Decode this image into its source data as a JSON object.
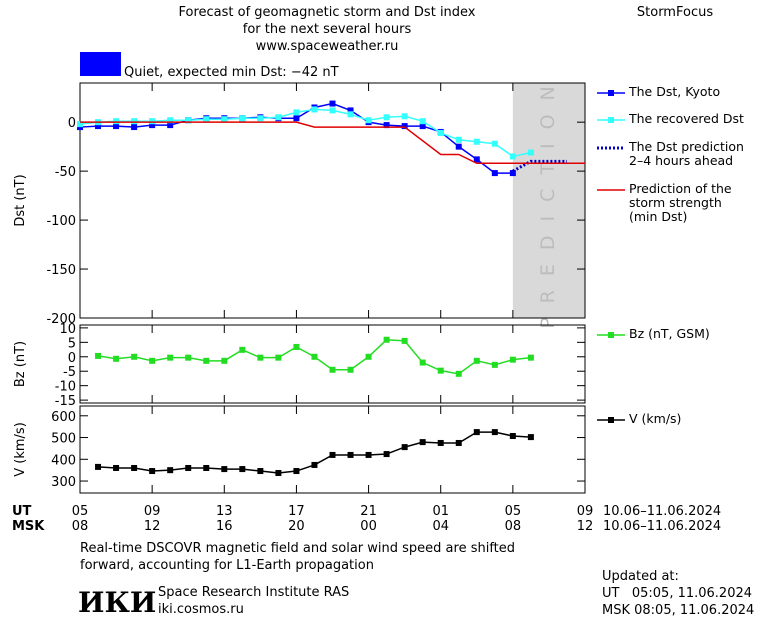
{
  "header": {
    "title_lines": [
      "Forecast of geomagnetic storm and Dst index",
      "for the next several hours",
      "www.spaceweather.ru"
    ],
    "brand": "StormFocus"
  },
  "chart_data": [
    {
      "type": "line",
      "ylabel": "Dst (nT)",
      "xlim": [
        0,
        28
      ],
      "ylim": [
        -200,
        40
      ],
      "yticks": [
        0,
        -50,
        -100,
        -150,
        -200
      ],
      "xticks": [
        0,
        4,
        8,
        12,
        16,
        20,
        24,
        28
      ],
      "annotation": {
        "text": "Quiet, expected min Dst: −42 nT",
        "level_color": "#0000ff"
      },
      "prediction_label": "PREDICTION",
      "prediction_region": [
        24,
        28
      ],
      "series": [
        {
          "name": "The Dst, Kyoto",
          "color": "#0000ff",
          "marker": "square",
          "x": [
            0,
            1,
            2,
            3,
            4,
            5,
            6,
            7,
            8,
            9,
            10,
            11,
            12,
            13,
            14,
            15,
            16,
            17,
            18,
            19,
            20,
            21,
            22,
            23,
            24
          ],
          "values": [
            -5,
            -4,
            -4,
            -5,
            -3,
            -3,
            2,
            4,
            4,
            4,
            5,
            4,
            4,
            15,
            19,
            12,
            0,
            -3,
            -4,
            -4,
            -10,
            -25,
            -38,
            -52,
            -52
          ]
        },
        {
          "name": "The recovered Dst",
          "color": "#33ffff",
          "marker": "square",
          "x": [
            0,
            1,
            2,
            3,
            4,
            5,
            6,
            7,
            8,
            9,
            10,
            11,
            12,
            13,
            14,
            15,
            16,
            17,
            18,
            19,
            20,
            21,
            22,
            23,
            24,
            25
          ],
          "values": [
            -2,
            0,
            1,
            1,
            1,
            2,
            2,
            3,
            3,
            4,
            4,
            5,
            10,
            13,
            12,
            8,
            2,
            5,
            6,
            1,
            -11,
            -18,
            -20,
            -22,
            -35,
            -31
          ]
        },
        {
          "name": "The Dst prediction 2–4 hours ahead",
          "color": "#0000cc",
          "dash": true,
          "x": [
            24,
            25,
            27
          ],
          "values": [
            -50,
            -40,
            -40
          ]
        },
        {
          "name": "Prediction of the storm strength (min Dst)",
          "color": "#e00000",
          "x": [
            0,
            12,
            13,
            18,
            20,
            21,
            22,
            28
          ],
          "values": [
            0,
            0,
            -5,
            -5,
            -33,
            -33,
            -42,
            -42
          ]
        }
      ]
    },
    {
      "type": "line",
      "ylabel": "Bz (nT)",
      "xlim": [
        0,
        28
      ],
      "ylim": [
        -16,
        11
      ],
      "yticks": [
        10,
        5,
        0,
        -5,
        -10,
        -15
      ],
      "xticks": [
        0,
        4,
        8,
        12,
        16,
        20,
        24,
        28
      ],
      "series": [
        {
          "name": "Bz (nT, GSM)",
          "color": "#22dd22",
          "marker": "square",
          "x": [
            1,
            2,
            3,
            4,
            5,
            6,
            7,
            8,
            9,
            10,
            11,
            12,
            13,
            14,
            15,
            16,
            17,
            18,
            19,
            20,
            21,
            22,
            23,
            24,
            25
          ],
          "values": [
            0.3,
            -0.7,
            0,
            -1.4,
            -0.3,
            -0.3,
            -1.4,
            -1.4,
            2.4,
            -0.3,
            -0.3,
            3.4,
            0,
            -4.5,
            -4.5,
            0,
            5.9,
            5.5,
            -2,
            -4.8,
            -5.9,
            -1.4,
            -2.8,
            -1,
            -0.3
          ]
        }
      ]
    },
    {
      "type": "line",
      "ylabel": "V (km/s)",
      "xlim": [
        0,
        28
      ],
      "ylim": [
        245,
        645
      ],
      "yticks": [
        600,
        500,
        400,
        300
      ],
      "xticks": [
        {
          "value": 0,
          "label": "05"
        },
        {
          "value": 4,
          "label": "09"
        },
        {
          "value": 8,
          "label": "13"
        },
        {
          "value": 12,
          "label": "17"
        },
        {
          "value": 16,
          "label": "21"
        },
        {
          "value": 20,
          "label": "01"
        },
        {
          "value": 24,
          "label": "05"
        },
        {
          "value": 28,
          "label": "09"
        }
      ],
      "xticks_msk": [
        {
          "value": 0,
          "label": "08"
        },
        {
          "value": 4,
          "label": "12"
        },
        {
          "value": 8,
          "label": "16"
        },
        {
          "value": 12,
          "label": "20"
        },
        {
          "value": 16,
          "label": "00"
        },
        {
          "value": 20,
          "label": "04"
        },
        {
          "value": 24,
          "label": "08"
        },
        {
          "value": 28,
          "label": "12"
        }
      ],
      "ut_label": "UT",
      "msk_label": "MSK",
      "ut_dates": "10.06–11.06.2024",
      "msk_dates": "10.06–11.06.2024",
      "series": [
        {
          "name": "V (km/s)",
          "color": "#000000",
          "marker": "square",
          "x": [
            1,
            2,
            3,
            4,
            5,
            6,
            7,
            8,
            9,
            10,
            11,
            12,
            13,
            14,
            15,
            16,
            17,
            18,
            19,
            20,
            21,
            22,
            23,
            24,
            25
          ],
          "values": [
            365,
            360,
            360,
            346,
            350,
            360,
            360,
            355,
            355,
            346,
            337,
            346,
            374,
            420,
            420,
            420,
            424,
            456,
            479,
            475,
            475,
            525,
            525,
            507,
            502
          ]
        }
      ]
    }
  ],
  "footer": {
    "note_lines": [
      "Real-time DSCOVR magnetic field and solar wind speed are shifted",
      "forward, accounting for L1-Earth propagation"
    ],
    "logo": "ИКИ",
    "institute": "Space Research Institute RAS",
    "site": "iki.cosmos.ru",
    "updated_label": "Updated at:",
    "updated_ut": "UT   05:05, 11.06.2024",
    "updated_msk": "MSK 08:05, 11.06.2024"
  }
}
